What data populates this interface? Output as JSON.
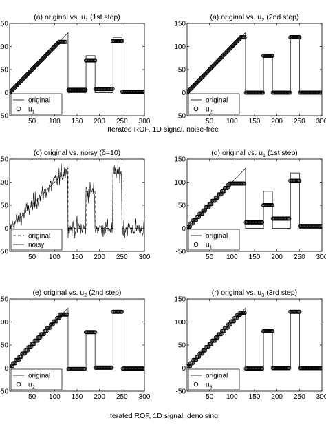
{
  "captions": [
    {
      "text": "Iterated ROF, 1D signal, noise-free"
    },
    {
      "text": "Iterated ROF, 1D signal, denoising"
    }
  ],
  "chart_data": [
    {
      "type": "line",
      "title": {
        "pre": "(a) original vs. u",
        "sub": "1",
        "post": " (1st step)"
      },
      "xlim": [
        0,
        300
      ],
      "ylim": [
        -50,
        150
      ],
      "xticks": [
        "50",
        "100",
        "150",
        "200",
        "250",
        "300"
      ],
      "yticks": [
        "-50",
        "0",
        "50",
        "100",
        "150"
      ],
      "legend": {
        "position": "bottom-left",
        "entries": [
          {
            "style": "solid-line",
            "text": "original"
          },
          {
            "style": "circle",
            "text": "u",
            "sub": "1"
          }
        ]
      },
      "series": [
        {
          "role": "original",
          "style": "solid-line",
          "x": [
            0,
            130,
            130,
            170,
            170,
            190,
            190,
            210,
            210,
            230,
            230,
            250,
            250,
            300
          ],
          "y": [
            0,
            130,
            0,
            0,
            80,
            80,
            0,
            0,
            0,
            0,
            120,
            120,
            0,
            0
          ]
        },
        {
          "role": "u",
          "style": "circles",
          "segments": [
            {
              "x": [
                0,
                110
              ],
              "y": [
                0,
                110
              ]
            },
            {
              "x": [
                110,
                125
              ],
              "y": [
                110,
                110
              ]
            },
            {
              "x": [
                131,
                169
              ],
              "y": [
                6,
                6
              ]
            },
            {
              "x": [
                170,
                190
              ],
              "y": [
                70,
                70
              ]
            },
            {
              "x": [
                191,
                229
              ],
              "y": [
                8,
                8
              ]
            },
            {
              "x": [
                230,
                250
              ],
              "y": [
                112,
                112
              ]
            },
            {
              "x": [
                251,
                300
              ],
              "y": [
                2,
                2
              ]
            }
          ]
        }
      ]
    },
    {
      "type": "line",
      "title": {
        "pre": "(a) original vs. u",
        "sub": "2",
        "post": " (2nd step)"
      },
      "xlim": [
        0,
        300
      ],
      "ylim": [
        -50,
        150
      ],
      "xticks": [
        "50",
        "100",
        "150",
        "200",
        "250",
        "300"
      ],
      "yticks": [
        "-50",
        "0",
        "50",
        "100",
        "150"
      ],
      "legend": {
        "position": "bottom-left",
        "entries": [
          {
            "style": "solid-line",
            "text": "original"
          },
          {
            "style": "circle",
            "text": "u",
            "sub": "2"
          }
        ]
      },
      "series": [
        {
          "role": "original",
          "style": "solid-line",
          "x": [
            0,
            130,
            130,
            170,
            170,
            190,
            190,
            210,
            210,
            230,
            230,
            250,
            250,
            300
          ],
          "y": [
            0,
            130,
            0,
            0,
            80,
            80,
            0,
            0,
            0,
            0,
            120,
            120,
            0,
            0
          ]
        },
        {
          "role": "u",
          "style": "circles",
          "segments": [
            {
              "x": [
                0,
                120
              ],
              "y": [
                0,
                120
              ]
            },
            {
              "x": [
                120,
                129
              ],
              "y": [
                120,
                120
              ]
            },
            {
              "x": [
                131,
                169
              ],
              "y": [
                0,
                0
              ]
            },
            {
              "x": [
                170,
                190
              ],
              "y": [
                80,
                80
              ]
            },
            {
              "x": [
                191,
                229
              ],
              "y": [
                0,
                0
              ]
            },
            {
              "x": [
                230,
                250
              ],
              "y": [
                120,
                120
              ]
            },
            {
              "x": [
                251,
                300
              ],
              "y": [
                0,
                0
              ]
            }
          ]
        }
      ]
    },
    {
      "type": "line",
      "title": {
        "pre": "(c) original vs. noisy (δ=10)",
        "sub": "",
        "post": ""
      },
      "xlim": [
        0,
        300
      ],
      "ylim": [
        -50,
        150
      ],
      "xticks": [
        "50",
        "100",
        "150",
        "200",
        "250",
        "300"
      ],
      "yticks": [
        "-50",
        "0",
        "50",
        "100",
        "150"
      ],
      "legend": {
        "position": "bottom-left",
        "entries": [
          {
            "style": "dashed-line",
            "text": "original"
          },
          {
            "style": "solid-line",
            "text": "noisy"
          }
        ]
      },
      "series": [
        {
          "role": "original",
          "style": "dashed-line",
          "x": [
            0,
            130,
            130,
            170,
            170,
            190,
            190,
            210,
            210,
            230,
            230,
            250,
            250,
            300
          ],
          "y": [
            0,
            130,
            0,
            0,
            80,
            80,
            0,
            0,
            0,
            0,
            120,
            120,
            0,
            0
          ]
        },
        {
          "role": "noisy",
          "style": "solid-line",
          "noise_sigma": 10
        }
      ]
    },
    {
      "type": "line",
      "title": {
        "pre": "(d) original vs. u",
        "sub": "1",
        "post": " (1st step)"
      },
      "xlim": [
        0,
        300
      ],
      "ylim": [
        -50,
        150
      ],
      "xticks": [
        "50",
        "100",
        "150",
        "200",
        "250",
        "300"
      ],
      "yticks": [
        "-50",
        "0",
        "50",
        "100",
        "150"
      ],
      "legend": {
        "position": "bottom-left",
        "entries": [
          {
            "style": "solid-line",
            "text": "original"
          },
          {
            "style": "circle",
            "text": "u",
            "sub": "1"
          }
        ]
      },
      "series": [
        {
          "role": "original",
          "style": "solid-line",
          "x": [
            0,
            130,
            130,
            170,
            170,
            190,
            190,
            210,
            210,
            230,
            230,
            250,
            250,
            300
          ],
          "y": [
            0,
            130,
            0,
            0,
            80,
            80,
            0,
            0,
            0,
            0,
            120,
            120,
            0,
            0
          ]
        },
        {
          "role": "u",
          "style": "circles",
          "segments": [
            {
              "x": [
                0,
                95
              ],
              "y": [
                0,
                95
              ],
              "staircase": true
            },
            {
              "x": [
                95,
                128
              ],
              "y": [
                97,
                97
              ]
            },
            {
              "x": [
                131,
                168
              ],
              "y": [
                13,
                13
              ]
            },
            {
              "x": [
                170,
                190
              ],
              "y": [
                50,
                50
              ]
            },
            {
              "x": [
                191,
                228
              ],
              "y": [
                21,
                21
              ]
            },
            {
              "x": [
                230,
                250
              ],
              "y": [
                103,
                103
              ]
            },
            {
              "x": [
                252,
                300
              ],
              "y": [
                5,
                5
              ]
            }
          ]
        }
      ]
    },
    {
      "type": "line",
      "title": {
        "pre": "(e) original vs. u",
        "sub": "2",
        "post": " (2nd step)"
      },
      "xlim": [
        0,
        300
      ],
      "ylim": [
        -50,
        150
      ],
      "xticks": [
        "50",
        "100",
        "150",
        "200",
        "250",
        "300"
      ],
      "yticks": [
        "-50",
        "0",
        "50",
        "100",
        "150"
      ],
      "legend": {
        "position": "bottom-left",
        "entries": [
          {
            "style": "solid-line",
            "text": "original"
          },
          {
            "style": "circle",
            "text": "u",
            "sub": "2"
          }
        ]
      },
      "series": [
        {
          "role": "original",
          "style": "solid-line",
          "x": [
            0,
            130,
            130,
            170,
            170,
            190,
            190,
            210,
            210,
            230,
            230,
            250,
            250,
            300
          ],
          "y": [
            0,
            130,
            0,
            0,
            80,
            80,
            0,
            0,
            0,
            0,
            120,
            120,
            0,
            0
          ]
        },
        {
          "role": "u",
          "style": "circles",
          "segments": [
            {
              "x": [
                0,
                112
              ],
              "y": [
                0,
                112
              ],
              "staircase": true
            },
            {
              "x": [
                112,
                128
              ],
              "y": [
                116,
                116
              ]
            },
            {
              "x": [
                131,
                168
              ],
              "y": [
                -2,
                -2
              ]
            },
            {
              "x": [
                170,
                190
              ],
              "y": [
                78,
                78
              ]
            },
            {
              "x": [
                191,
                228
              ],
              "y": [
                1,
                1
              ]
            },
            {
              "x": [
                230,
                250
              ],
              "y": [
                122,
                122
              ]
            },
            {
              "x": [
                252,
                300
              ],
              "y": [
                -1,
                -1
              ]
            }
          ]
        }
      ]
    },
    {
      "type": "line",
      "title": {
        "pre": "(r) original vs. u",
        "sub": "3",
        "post": " (3rd step)"
      },
      "xlim": [
        0,
        300
      ],
      "ylim": [
        -50,
        150
      ],
      "xticks": [
        "50",
        "100",
        "150",
        "200",
        "250",
        "300"
      ],
      "yticks": [
        "-50",
        "0",
        "50",
        "100",
        "150"
      ],
      "legend": {
        "position": "bottom-left",
        "entries": [
          {
            "style": "solid-line",
            "text": "original"
          },
          {
            "style": "circle",
            "text": "u",
            "sub": "3"
          }
        ]
      },
      "series": [
        {
          "role": "original",
          "style": "solid-line",
          "x": [
            0,
            130,
            130,
            170,
            170,
            190,
            190,
            210,
            210,
            230,
            230,
            250,
            250,
            300
          ],
          "y": [
            0,
            130,
            0,
            0,
            80,
            80,
            0,
            0,
            0,
            0,
            120,
            120,
            0,
            0
          ]
        },
        {
          "role": "u",
          "style": "circles",
          "segments": [
            {
              "x": [
                0,
                118
              ],
              "y": [
                0,
                118
              ],
              "staircase": true
            },
            {
              "x": [
                118,
                128
              ],
              "y": [
                120,
                120
              ]
            },
            {
              "x": [
                131,
                168
              ],
              "y": [
                -1,
                -1
              ]
            },
            {
              "x": [
                170,
                190
              ],
              "y": [
                80,
                80
              ]
            },
            {
              "x": [
                191,
                228
              ],
              "y": [
                0,
                0
              ]
            },
            {
              "x": [
                230,
                250
              ],
              "y": [
                122,
                122
              ]
            },
            {
              "x": [
                252,
                300
              ],
              "y": [
                0,
                0
              ]
            }
          ]
        }
      ]
    }
  ]
}
